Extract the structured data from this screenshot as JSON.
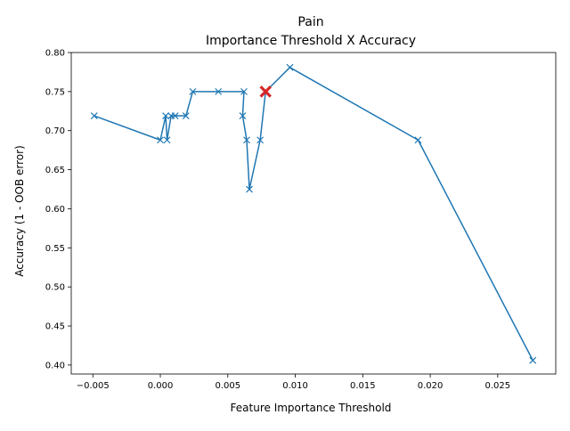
{
  "chart_data": {
    "type": "line",
    "title": "Pain",
    "subtitle": "Importance Threshold X Accuracy",
    "xlabel": "Feature Importance Threshold",
    "ylabel": "Accuracy (1 - OOB error)",
    "xlim": [
      -0.0066,
      0.0293
    ],
    "ylim": [
      0.3885,
      0.8
    ],
    "xticks": [
      -0.005,
      0.0,
      0.005,
      0.01,
      0.015,
      0.02,
      0.025
    ],
    "xtick_labels": [
      "−0.005",
      "0.000",
      "0.005",
      "0.010",
      "0.015",
      "0.020",
      "0.025"
    ],
    "yticks": [
      0.4,
      0.45,
      0.5,
      0.55,
      0.6,
      0.65,
      0.7,
      0.75,
      0.8
    ],
    "ytick_labels": [
      "0.40",
      "0.45",
      "0.50",
      "0.55",
      "0.60",
      "0.65",
      "0.70",
      "0.75",
      "0.80"
    ],
    "grid": false,
    "series": [
      {
        "color": "#1f77b4",
        "marker": "x",
        "x": [
          -0.0049,
          0.0,
          0.0004,
          0.0005,
          0.0008,
          0.0011,
          0.0019,
          0.0024,
          0.0043,
          0.0062,
          0.0061,
          0.0064,
          0.0066,
          0.0074,
          0.0078,
          0.0096,
          0.0191,
          0.0276
        ],
        "y": [
          0.719,
          0.688,
          0.719,
          0.688,
          0.719,
          0.719,
          0.719,
          0.75,
          0.75,
          0.75,
          0.719,
          0.688,
          0.625,
          0.688,
          0.75,
          0.781,
          0.688,
          0.406
        ]
      }
    ],
    "highlight": {
      "x": 0.0078,
      "y": 0.75,
      "color": "#d62728",
      "marker": "X"
    }
  }
}
